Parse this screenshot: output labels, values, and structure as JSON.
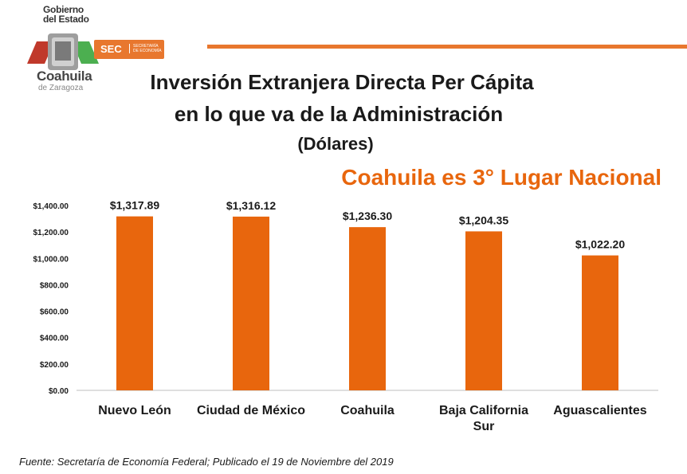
{
  "header": {
    "gov_line1": "Gobierno",
    "gov_line2": "del Estado",
    "state_name": "Coahuila",
    "state_suffix": "de Zaragoza",
    "sec_label": "SEC",
    "sec_sub1": "SECRETARÍA",
    "sec_sub2": "DE ECONOMÍA"
  },
  "title": {
    "line1": "Inversión Extranjera Directa Per Cápita",
    "line2": "en lo que va de la Administración",
    "line3": "(Dólares)"
  },
  "highlight": "Coahuila es 3° Lugar Nacional",
  "colors": {
    "accent": "#e8660d",
    "bar": "#e8660d",
    "text": "#1a1a1a"
  },
  "chart_data": {
    "type": "bar",
    "title": "Inversión Extranjera Directa Per Cápita en lo que va de la Administración",
    "ylabel": "Dólares",
    "categories": [
      "Nuevo León",
      "Ciudad de México",
      "Coahuila",
      "Baja California Sur",
      "Aguascalientes"
    ],
    "category_lines": [
      [
        "Nuevo León"
      ],
      [
        "Ciudad de México"
      ],
      [
        "Coahuila"
      ],
      [
        "Baja California",
        "Sur"
      ],
      [
        "Aguascalientes"
      ]
    ],
    "values": [
      1317.89,
      1316.12,
      1236.3,
      1204.35,
      1022.2
    ],
    "value_labels": [
      "$1,317.89",
      "$1,316.12",
      "$1,236.30",
      "$1,204.35",
      "$1,022.20"
    ],
    "ylim": [
      0,
      1400
    ],
    "yticks": [
      0,
      200,
      400,
      600,
      800,
      1000,
      1200,
      1400
    ],
    "ytick_labels": [
      "$0.00",
      "$200.00",
      "$400.00",
      "$600.00",
      "$800.00",
      "$1,000.00",
      "$1,200.00",
      "$1,400.00"
    ],
    "grid": false
  },
  "footer": {
    "source": "Fuente: Secretaría de Economía Federal; Publicado el 19 de Noviembre del 2019"
  }
}
